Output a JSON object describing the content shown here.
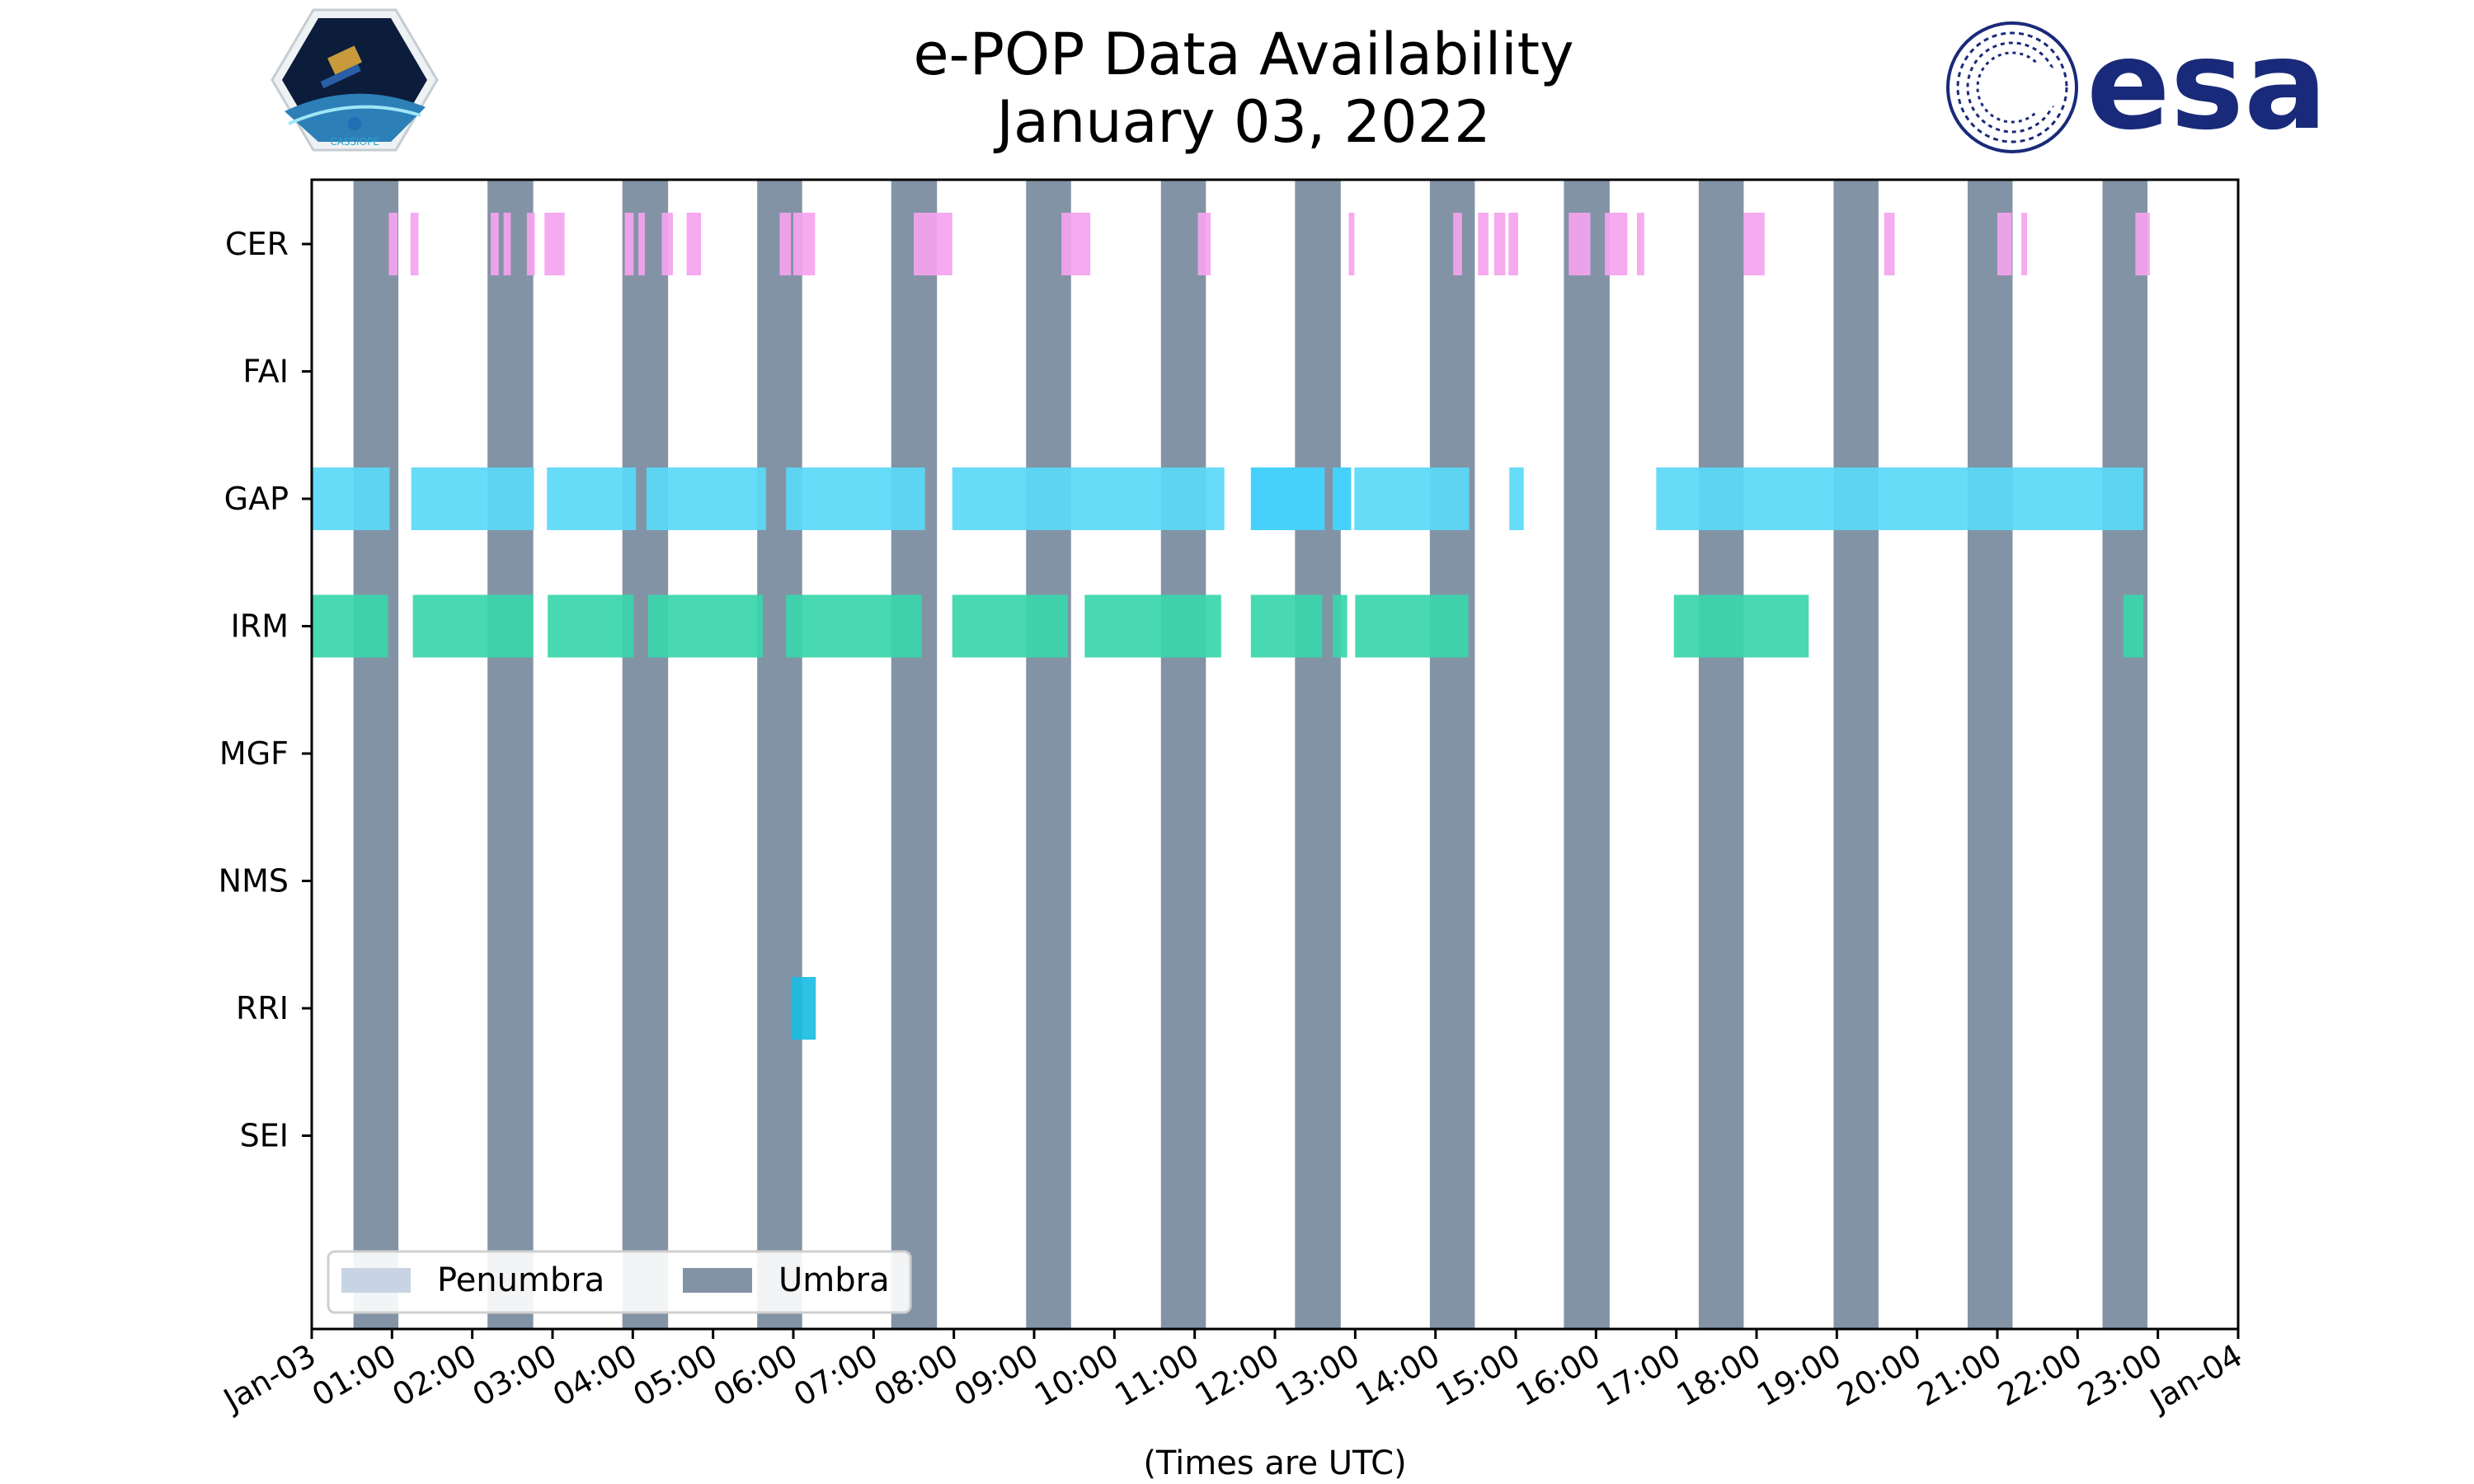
{
  "colors": {
    "umbra": "#8393a6",
    "penumbra": "#c8d4e3",
    "CER": "#f5a3ee",
    "GAP": "#5ad9f7",
    "GAP_dark": "#46d1fb",
    "IRM": "#38d6ab",
    "RRI": "#1cbde3",
    "esa_blue": "#1a2a7a"
  },
  "logos": {
    "left_label": "CASSIOPE",
    "right_text": "esa"
  },
  "chart_data": {
    "type": "timeline",
    "title_line1": "e-POP Data Availability",
    "title_line2": "January 03, 2022",
    "xlabel": "(Times are UTC)",
    "x_unit": "hours UTC",
    "xlim": [
      0,
      24
    ],
    "x_ticks": [
      {
        "hour": 0,
        "label": "Jan-03"
      },
      {
        "hour": 1,
        "label": "01:00"
      },
      {
        "hour": 2,
        "label": "02:00"
      },
      {
        "hour": 3,
        "label": "03:00"
      },
      {
        "hour": 4,
        "label": "04:00"
      },
      {
        "hour": 5,
        "label": "05:00"
      },
      {
        "hour": 6,
        "label": "06:00"
      },
      {
        "hour": 7,
        "label": "07:00"
      },
      {
        "hour": 8,
        "label": "08:00"
      },
      {
        "hour": 9,
        "label": "09:00"
      },
      {
        "hour": 10,
        "label": "10:00"
      },
      {
        "hour": 11,
        "label": "11:00"
      },
      {
        "hour": 12,
        "label": "12:00"
      },
      {
        "hour": 13,
        "label": "13:00"
      },
      {
        "hour": 14,
        "label": "14:00"
      },
      {
        "hour": 15,
        "label": "15:00"
      },
      {
        "hour": 16,
        "label": "16:00"
      },
      {
        "hour": 17,
        "label": "17:00"
      },
      {
        "hour": 18,
        "label": "18:00"
      },
      {
        "hour": 19,
        "label": "19:00"
      },
      {
        "hour": 20,
        "label": "20:00"
      },
      {
        "hour": 21,
        "label": "21:00"
      },
      {
        "hour": 22,
        "label": "22:00"
      },
      {
        "hour": 23,
        "label": "23:00"
      },
      {
        "hour": 24,
        "label": "Jan-04"
      }
    ],
    "instruments": [
      "CER",
      "FAI",
      "GAP",
      "IRM",
      "MGF",
      "NMS",
      "RRI",
      "SEI"
    ],
    "umbra": [
      [
        0.52,
        1.08
      ],
      [
        2.19,
        2.76
      ],
      [
        3.87,
        4.44
      ],
      [
        5.55,
        6.11
      ],
      [
        7.22,
        7.79
      ],
      [
        8.9,
        9.46
      ],
      [
        10.58,
        11.14
      ],
      [
        12.25,
        12.82
      ],
      [
        13.93,
        14.49
      ],
      [
        15.6,
        16.17
      ],
      [
        17.28,
        17.84
      ],
      [
        18.96,
        19.52
      ],
      [
        20.63,
        21.19
      ],
      [
        22.31,
        22.87
      ]
    ],
    "series": [
      {
        "name": "CER",
        "color_key": "CER",
        "intervals": [
          [
            0.96,
            1.07
          ],
          [
            1.23,
            1.33
          ],
          [
            2.23,
            2.33
          ],
          [
            2.39,
            2.48
          ],
          [
            2.68,
            2.78
          ],
          [
            2.9,
            3.15
          ],
          [
            3.9,
            4.01
          ],
          [
            4.07,
            4.15
          ],
          [
            4.36,
            4.5
          ],
          [
            4.67,
            4.85
          ],
          [
            5.83,
            5.97
          ],
          [
            6.0,
            6.27
          ],
          [
            7.5,
            7.98
          ],
          [
            9.34,
            9.7
          ],
          [
            11.04,
            11.2
          ],
          [
            12.92,
            12.99
          ],
          [
            14.22,
            14.33
          ],
          [
            14.53,
            14.66
          ],
          [
            14.73,
            14.87
          ],
          [
            14.91,
            15.03
          ],
          [
            15.66,
            15.93
          ],
          [
            16.11,
            16.39
          ],
          [
            16.51,
            16.6
          ],
          [
            17.84,
            18.1
          ],
          [
            19.59,
            19.72
          ],
          [
            21.0,
            21.18
          ],
          [
            21.3,
            21.37
          ],
          [
            22.72,
            22.9
          ]
        ]
      },
      {
        "name": "FAI",
        "color_key": "CER",
        "intervals": []
      },
      {
        "name": "GAP",
        "color_key": "GAP",
        "intervals": [
          [
            0.0,
            0.97
          ],
          [
            1.24,
            2.77
          ],
          [
            2.93,
            4.04
          ],
          [
            4.17,
            5.66
          ],
          [
            5.91,
            7.64
          ],
          [
            7.98,
            11.37
          ],
          [
            12.99,
            14.42
          ],
          [
            14.92,
            15.1
          ],
          [
            16.75,
            22.82
          ]
        ],
        "dark_intervals": [
          [
            11.7,
            12.62
          ],
          [
            12.72,
            12.95
          ]
        ]
      },
      {
        "name": "IRM",
        "color_key": "IRM",
        "intervals": [
          [
            0.0,
            0.95
          ],
          [
            1.26,
            2.76
          ],
          [
            2.94,
            4.01
          ],
          [
            4.19,
            5.62
          ],
          [
            5.91,
            7.6
          ],
          [
            7.98,
            9.42
          ],
          [
            9.63,
            11.33
          ],
          [
            11.7,
            12.59
          ],
          [
            12.72,
            12.9
          ],
          [
            13.0,
            14.41
          ],
          [
            16.97,
            18.65
          ],
          [
            22.57,
            22.82
          ]
        ]
      },
      {
        "name": "MGF",
        "color_key": "CER",
        "intervals": []
      },
      {
        "name": "NMS",
        "color_key": "CER",
        "intervals": []
      },
      {
        "name": "RRI",
        "color_key": "RRI",
        "intervals": [
          [
            5.97,
            6.28
          ]
        ]
      },
      {
        "name": "SEI",
        "color_key": "CER",
        "intervals": []
      }
    ],
    "legend": {
      "position": "lower-left",
      "entries": [
        {
          "label": "Penumbra",
          "color_key": "penumbra"
        },
        {
          "label": "Umbra",
          "color_key": "umbra"
        }
      ]
    }
  }
}
